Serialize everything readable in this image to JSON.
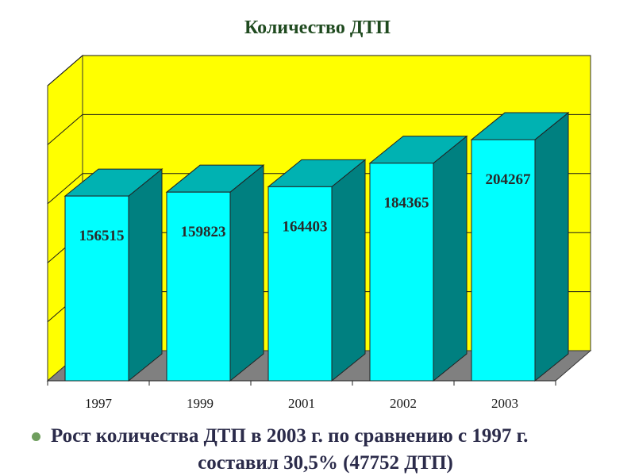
{
  "chart_data": {
    "type": "bar",
    "title": "Количество ДТП",
    "categories": [
      "1997",
      "1999",
      "2001",
      "2002",
      "2003"
    ],
    "values": [
      156515,
      159823,
      164403,
      184365,
      204267
    ],
    "data_labels": [
      "156515",
      "159823",
      "164403",
      "184365",
      "204267"
    ],
    "ylim": [
      0,
      250000
    ],
    "grid": true,
    "style": "3d-column",
    "colors": {
      "bar_front": "#00ffff",
      "bar_top": "#00b2b2",
      "bar_side": "#008080",
      "wall": "#ffff00",
      "floor": "#808080",
      "grid": "#1a1a1a"
    }
  },
  "caption": {
    "line1": "Рост количества ДТП в 2003 г. по сравнению с 1997 г.",
    "line2": "составил 30,5% (47752 ДТП)"
  }
}
